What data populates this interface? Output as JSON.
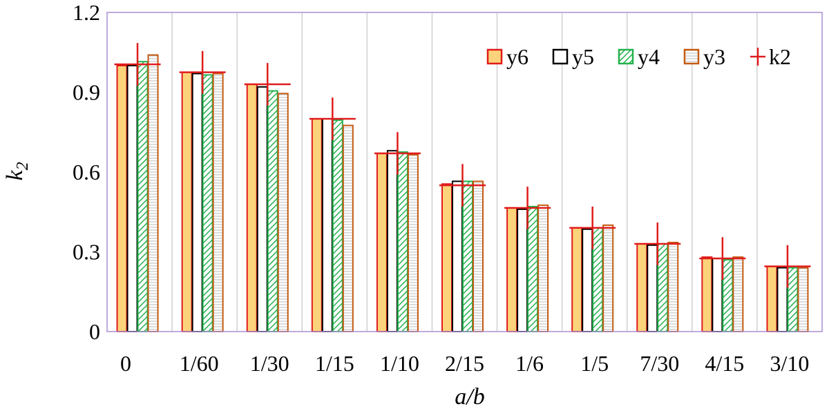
{
  "chart_data": {
    "type": "bar",
    "xlabel": "a/b",
    "ylabel": "k2",
    "ylim": [
      0,
      1.2
    ],
    "yticks": [
      "0",
      "0.3",
      "0.6",
      "0.9",
      "1.2"
    ],
    "categories": [
      "0",
      "1/60",
      "1/30",
      "1/15",
      "1/10",
      "2/15",
      "1/6",
      "1/5",
      "7/30",
      "4/15",
      "3/10"
    ],
    "series": [
      {
        "name": "y6",
        "style": "solid",
        "fill": "#fcd37a",
        "stroke": "#e01b1b",
        "values": [
          1.0,
          0.975,
          0.93,
          0.8,
          0.67,
          0.555,
          0.465,
          0.39,
          0.33,
          0.28,
          0.245
        ]
      },
      {
        "name": "y5",
        "style": "hollow",
        "fill": "#ffffff",
        "stroke": "#000000",
        "values": [
          1.0,
          0.97,
          0.92,
          0.8,
          0.68,
          0.565,
          0.46,
          0.385,
          0.325,
          0.275,
          0.24
        ]
      },
      {
        "name": "y4",
        "style": "hatch",
        "fill": "#22b14c",
        "stroke": "#22b14c",
        "values": [
          1.015,
          0.965,
          0.905,
          0.795,
          0.675,
          0.565,
          0.47,
          0.39,
          0.33,
          0.27,
          0.24
        ]
      },
      {
        "name": "y3",
        "style": "lines",
        "fill": "#c0c0c0",
        "stroke": "#c55a11",
        "values": [
          1.04,
          0.97,
          0.895,
          0.775,
          0.665,
          0.565,
          0.475,
          0.4,
          0.335,
          0.28,
          0.24
        ]
      },
      {
        "name": "k2",
        "style": "cross",
        "stroke": "#e01b1b",
        "values": [
          1.005,
          0.975,
          0.93,
          0.8,
          0.67,
          0.55,
          0.465,
          0.39,
          0.33,
          0.275,
          0.245
        ],
        "error": 0.08
      }
    ],
    "legend": "top-right",
    "grid": "vertical"
  }
}
